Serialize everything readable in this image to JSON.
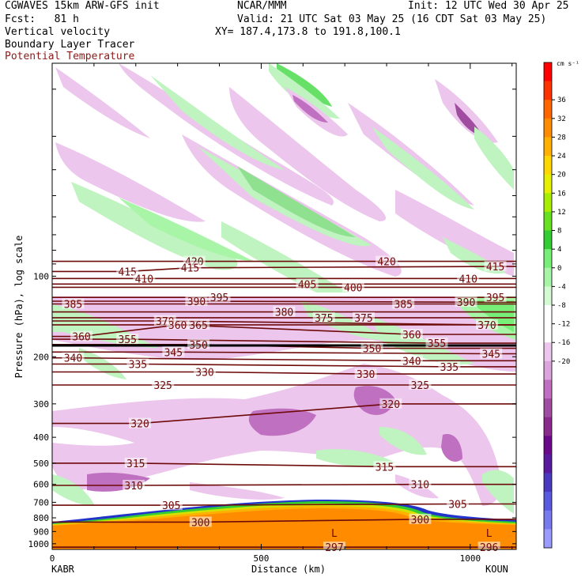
{
  "header": {
    "model": "CGWAVES 15km ARW-GFS init",
    "org": "NCAR/MMM",
    "init": "Init: 12 UTC Wed 30 Apr 25",
    "fcst": "Fcst:   81 h",
    "valid": "Valid: 21 UTC Sat 03 May 25 (16 CDT Sat 03 May 25)",
    "xy": "XY= 187.4,173.8 to 191.8,100.1",
    "field1": "Vertical velocity",
    "field2": "Boundary Layer Tracer",
    "field3": "Potential Temperature"
  },
  "chart_data": {
    "type": "cross-section",
    "xlabel": "Distance (km)",
    "ylabel": "Pressure (hPa), log scale",
    "xlim": [
      0,
      1110
    ],
    "ylim": [
      1050,
      16
    ],
    "x_ticks": [
      0,
      500,
      1000
    ],
    "y_ticks": [
      100,
      200,
      300,
      400,
      500,
      600,
      700,
      800,
      900,
      1000
    ],
    "x_endpoints": {
      "left": "KABR",
      "right": "KOUN"
    },
    "colorbar": {
      "unit": "cm s⁻¹",
      "tick_labels": [
        "36",
        "32",
        "28",
        "24",
        "20",
        "16",
        "12",
        "8",
        "4",
        "0",
        "-4",
        "-8",
        "-12",
        "-16",
        "-20"
      ],
      "colors": [
        "#ff0000",
        "#ff3300",
        "#ff6600",
        "#ff8c00",
        "#ffb000",
        "#ffd700",
        "#e5f000",
        "#a8ee00",
        "#66e020",
        "#33cc33",
        "#77ee77",
        "#a8f5a8",
        "#d4fad4",
        "#ffffff",
        "#ffffff",
        "#ecc6ec",
        "#dca4dc",
        "#c070c0",
        "#a04ca0",
        "#8a2a8a",
        "#6a0a8a",
        "#5a1aa0",
        "#4a3ac0",
        "#5a5ae0",
        "#7a7af0",
        "#9a9aff"
      ]
    },
    "theta_labels": [
      {
        "x": 340,
        "p": 88,
        "v": "420"
      },
      {
        "x": 800,
        "p": 88,
        "v": "420"
      },
      {
        "x": 180,
        "p": 96,
        "v": "415"
      },
      {
        "x": 330,
        "p": 93,
        "v": "415"
      },
      {
        "x": 1060,
        "p": 92,
        "v": "415"
      },
      {
        "x": 220,
        "p": 102,
        "v": "410"
      },
      {
        "x": 995,
        "p": 102,
        "v": "410"
      },
      {
        "x": 610,
        "p": 107,
        "v": "405"
      },
      {
        "x": 720,
        "p": 110,
        "v": "400"
      },
      {
        "x": 400,
        "p": 120,
        "v": "395"
      },
      {
        "x": 1060,
        "p": 120,
        "v": "395"
      },
      {
        "x": 345,
        "p": 124,
        "v": "390"
      },
      {
        "x": 990,
        "p": 125,
        "v": "390"
      },
      {
        "x": 50,
        "p": 127,
        "v": "385"
      },
      {
        "x": 840,
        "p": 127,
        "v": "385"
      },
      {
        "x": 555,
        "p": 136,
        "v": "380"
      },
      {
        "x": 650,
        "p": 143,
        "v": "375"
      },
      {
        "x": 745,
        "p": 143,
        "v": "375"
      },
      {
        "x": 270,
        "p": 147,
        "v": "370"
      },
      {
        "x": 1040,
        "p": 152,
        "v": "370"
      },
      {
        "x": 350,
        "p": 152,
        "v": "365"
      },
      {
        "x": 300,
        "p": 152,
        "v": "360"
      },
      {
        "x": 70,
        "p": 168,
        "v": "360"
      },
      {
        "x": 860,
        "p": 165,
        "v": "360"
      },
      {
        "x": 180,
        "p": 172,
        "v": "355"
      },
      {
        "x": 920,
        "p": 178,
        "v": "355"
      },
      {
        "x": 350,
        "p": 180,
        "v": "350"
      },
      {
        "x": 765,
        "p": 186,
        "v": "350"
      },
      {
        "x": 290,
        "p": 192,
        "v": "345"
      },
      {
        "x": 1050,
        "p": 195,
        "v": "345"
      },
      {
        "x": 50,
        "p": 202,
        "v": "340"
      },
      {
        "x": 860,
        "p": 207,
        "v": "340"
      },
      {
        "x": 205,
        "p": 213,
        "v": "335"
      },
      {
        "x": 950,
        "p": 218,
        "v": "335"
      },
      {
        "x": 365,
        "p": 228,
        "v": "330"
      },
      {
        "x": 750,
        "p": 232,
        "v": "330"
      },
      {
        "x": 265,
        "p": 255,
        "v": "325"
      },
      {
        "x": 880,
        "p": 255,
        "v": "325"
      },
      {
        "x": 810,
        "p": 300,
        "v": "320"
      },
      {
        "x": 210,
        "p": 355,
        "v": "320"
      },
      {
        "x": 200,
        "p": 500,
        "v": "315"
      },
      {
        "x": 795,
        "p": 515,
        "v": "315"
      },
      {
        "x": 195,
        "p": 605,
        "v": "310"
      },
      {
        "x": 880,
        "p": 600,
        "v": "310"
      },
      {
        "x": 285,
        "p": 718,
        "v": "305"
      },
      {
        "x": 970,
        "p": 710,
        "v": "305"
      },
      {
        "x": 355,
        "p": 830,
        "v": "300"
      },
      {
        "x": 880,
        "p": 810,
        "v": "300"
      },
      {
        "x": 675,
        "p": 1030,
        "v": "297"
      },
      {
        "x": 1045,
        "p": 1030,
        "v": "296"
      }
    ],
    "low_markers": [
      {
        "x": 675,
        "p": 910,
        "v": "L"
      },
      {
        "x": 1045,
        "p": 910,
        "v": "L"
      }
    ]
  }
}
